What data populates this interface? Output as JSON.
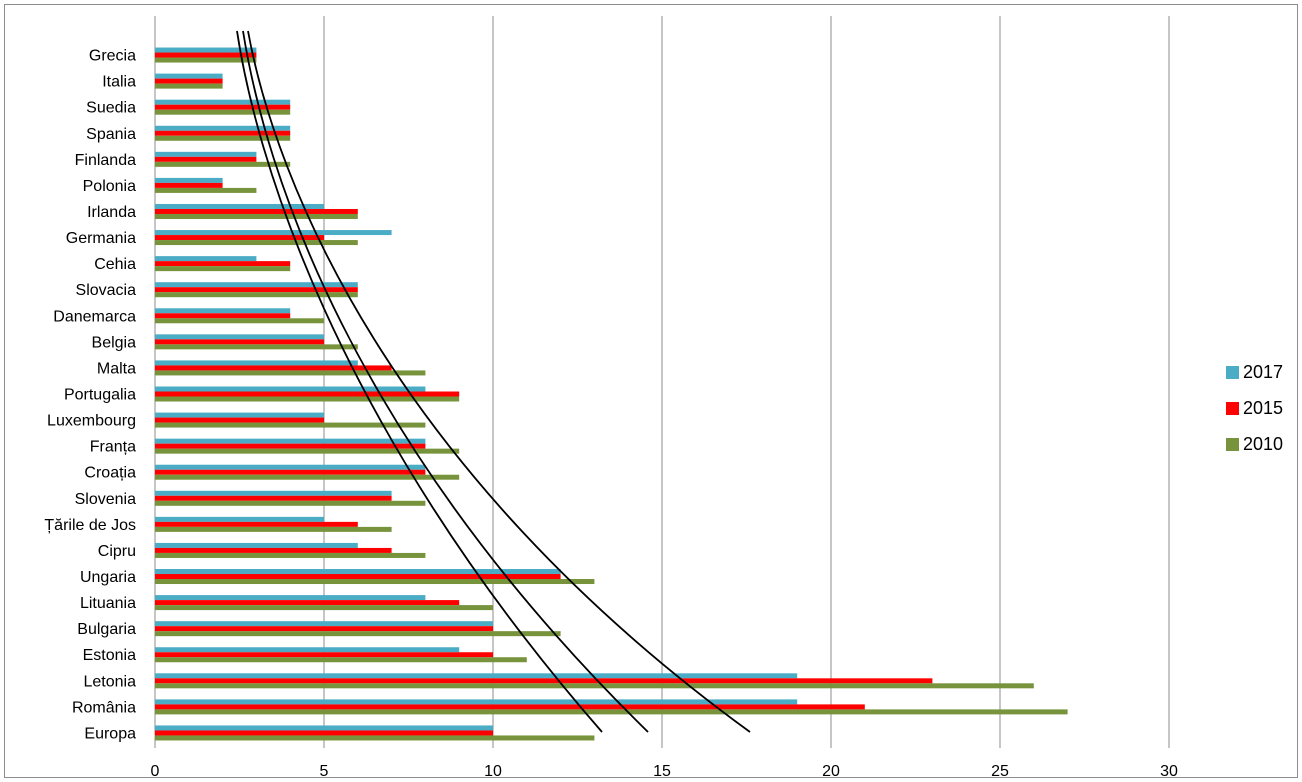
{
  "chart_data": {
    "type": "bar",
    "orientation": "horizontal",
    "categories": [
      "Grecia",
      "Italia",
      "Suedia",
      "Spania",
      "Finlanda",
      "Polonia",
      "Irlanda",
      "Germania",
      "Cehia",
      "Slovacia",
      "Danemarca",
      "Belgia",
      "Malta",
      "Portugalia",
      "Luxembourg",
      "Franța",
      "Croația",
      "Slovenia",
      "Țările de Jos",
      "Cipru",
      "Ungaria",
      "Lituania",
      "Bulgaria",
      "Estonia",
      "Letonia",
      "România",
      "Europa"
    ],
    "series": [
      {
        "name": "2017",
        "color": "#4bacc6",
        "values": [
          3,
          2,
          4,
          4,
          3,
          2,
          5,
          7,
          3,
          6,
          4,
          5,
          6,
          8,
          5,
          8,
          8,
          7,
          5,
          6,
          12,
          8,
          10,
          9,
          19,
          19,
          10
        ]
      },
      {
        "name": "2015",
        "color": "#ff0000",
        "values": [
          3,
          2,
          4,
          4,
          3,
          2,
          6,
          5,
          4,
          6,
          4,
          5,
          7,
          9,
          5,
          8,
          8,
          7,
          6,
          7,
          12,
          9,
          10,
          10,
          23,
          21,
          10
        ]
      },
      {
        "name": "2010",
        "color": "#77933c",
        "values": [
          3,
          2,
          4,
          4,
          4,
          3,
          6,
          6,
          4,
          6,
          5,
          6,
          8,
          9,
          8,
          9,
          9,
          8,
          7,
          8,
          13,
          10,
          12,
          11,
          26,
          27,
          13
        ]
      }
    ],
    "x_ticks": [
      "0",
      "5",
      "10",
      "15",
      "20",
      "25",
      "30"
    ],
    "xlim": [
      0,
      30
    ],
    "grid": true,
    "legend_position": "right",
    "title": "",
    "xlabel": "",
    "ylabel": "",
    "trend_lines": 3,
    "trend_line_color": "#000000"
  }
}
